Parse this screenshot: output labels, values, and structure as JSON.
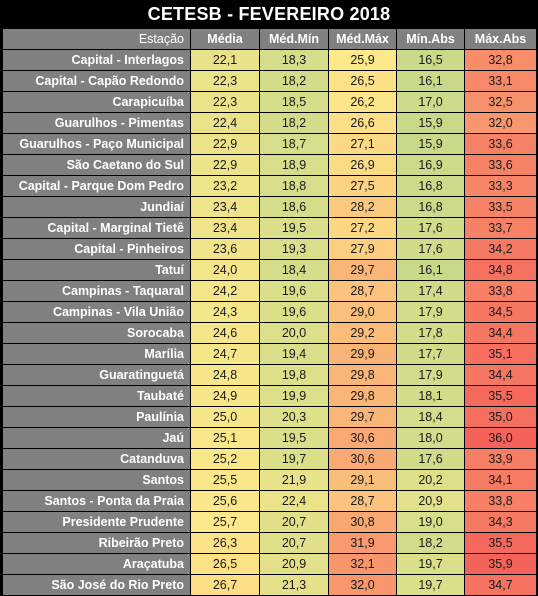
{
  "title": "CETESB - FEVEREIRO 2018",
  "headers": [
    "Estação",
    "Média",
    "Méd.Mín",
    "Méd.Máx",
    "Mín.Abs",
    "Máx.Abs"
  ],
  "colors": {
    "background": "#000000",
    "header_fill": "#808080",
    "scale_low": "#c8d98a",
    "scale_mid": "#fde88a",
    "scale_high": "#f4625a"
  },
  "rows": [
    [
      "Capital - Interlagos",
      "22,1",
      "18,3",
      "25,9",
      "16,5",
      "32,8"
    ],
    [
      "Capital - Capão Redondo",
      "22,3",
      "18,2",
      "26,5",
      "16,1",
      "33,1"
    ],
    [
      "Carapicuíba",
      "22,3",
      "18,5",
      "26,2",
      "17,0",
      "32,5"
    ],
    [
      "Guarulhos - Pimentas",
      "22,4",
      "18,2",
      "26,6",
      "15,9",
      "32,0"
    ],
    [
      "Guarulhos - Paço Municipal",
      "22,9",
      "18,7",
      "27,1",
      "15,9",
      "33,6"
    ],
    [
      "São Caetano do Sul",
      "22,9",
      "18,9",
      "26,9",
      "16,9",
      "33,6"
    ],
    [
      "Capital - Parque Dom Pedro",
      "23,2",
      "18,8",
      "27,5",
      "16,8",
      "33,3"
    ],
    [
      "Jundiaí",
      "23,4",
      "18,6",
      "28,2",
      "16,8",
      "33,5"
    ],
    [
      "Capital - Marginal Tietê",
      "23,4",
      "19,5",
      "27,2",
      "17,6",
      "33,7"
    ],
    [
      "Capital - Pinheiros",
      "23,6",
      "19,3",
      "27,9",
      "17,6",
      "34,2"
    ],
    [
      "Tatuí",
      "24,0",
      "18,4",
      "29,7",
      "16,1",
      "34,8"
    ],
    [
      "Campinas - Taquaral",
      "24,2",
      "19,6",
      "28,7",
      "17,4",
      "33,8"
    ],
    [
      "Campinas - Vila União",
      "24,3",
      "19,6",
      "29,0",
      "17,9",
      "34,5"
    ],
    [
      "Sorocaba",
      "24,6",
      "20,0",
      "29,2",
      "17,8",
      "34,4"
    ],
    [
      "Marília",
      "24,7",
      "19,4",
      "29,9",
      "17,7",
      "35,1"
    ],
    [
      "Guaratinguetá",
      "24,8",
      "19,8",
      "29,8",
      "17,9",
      "34,4"
    ],
    [
      "Taubaté",
      "24,9",
      "19,9",
      "29,8",
      "18,1",
      "35,5"
    ],
    [
      "Paulínia",
      "25,0",
      "20,3",
      "29,7",
      "18,4",
      "35,0"
    ],
    [
      "Jaú",
      "25,1",
      "19,5",
      "30,6",
      "18,0",
      "36,0"
    ],
    [
      "Catanduva",
      "25,2",
      "19,7",
      "30,6",
      "17,6",
      "33,9"
    ],
    [
      "Santos",
      "25,5",
      "21,9",
      "29,1",
      "20,2",
      "34,1"
    ],
    [
      "Santos - Ponta da Praia",
      "25,6",
      "22,4",
      "28,7",
      "20,9",
      "33,8"
    ],
    [
      "Presidente Prudente",
      "25,7",
      "20,7",
      "30,8",
      "19,0",
      "34,3"
    ],
    [
      "Ribeirão Preto",
      "26,3",
      "20,7",
      "31,9",
      "18,2",
      "35,5"
    ],
    [
      "Araçatuba",
      "26,5",
      "20,9",
      "32,1",
      "19,7",
      "35,9"
    ],
    [
      "São José do Rio Preto",
      "26,7",
      "21,3",
      "32,0",
      "19,7",
      "34,7"
    ]
  ]
}
